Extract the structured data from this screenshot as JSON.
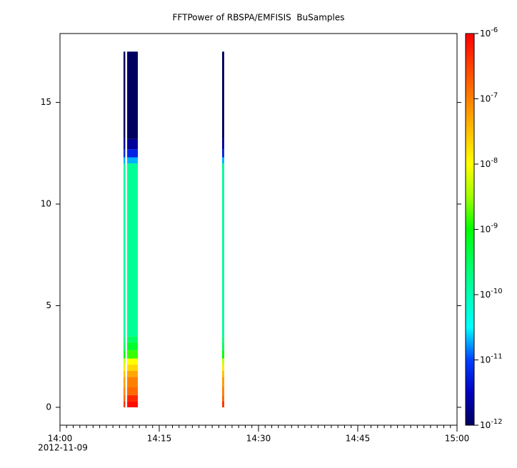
{
  "chart_data": {
    "type": "spectrogram",
    "title": "FFTPower of RBSPA/EMFISIS  BuSamples",
    "date_label": "2012-11-09",
    "xlim": [
      "14:00",
      "15:00"
    ],
    "xticks": [
      "14:00",
      "14:15",
      "14:30",
      "14:45",
      "15:00"
    ],
    "xminor_step_minutes": 1,
    "ylim": [
      -0.88,
      18.39
    ],
    "yticks": [
      0,
      5,
      10,
      15
    ],
    "y_bin_edges": [
      0,
      0.3,
      0.6,
      1,
      1.5,
      1.8,
      2.1,
      2.4,
      2.8,
      3.2,
      3.5,
      12,
      12.3,
      12.7,
      13.2,
      17.5
    ],
    "columns": [
      {
        "x0": "14:09:36",
        "x1": "14:09:52",
        "values": [
          4e-07,
          1.5e-07,
          1e-07,
          6e-08,
          3e-08,
          1.5e-08,
          5e-09,
          1e-09,
          3e-10,
          2e-10,
          1.5e-10,
          2e-11,
          6e-12,
          2e-12,
          5e-13
        ]
      },
      {
        "x0": "14:10:09",
        "x1": "14:11:46",
        "values": [
          8e-07,
          5e-07,
          1.5e-07,
          1e-07,
          5e-08,
          2e-08,
          1e-08,
          1.5e-09,
          6e-10,
          3e-10,
          1.5e-10,
          2e-11,
          6e-12,
          2e-12,
          5e-13
        ]
      },
      {
        "x0": "14:24:30",
        "x1": "14:24:49",
        "values": [
          4e-07,
          1.5e-07,
          1e-07,
          6e-08,
          3e-08,
          1.5e-08,
          5e-09,
          1e-09,
          3e-10,
          2e-10,
          1.5e-10,
          2e-11,
          6e-12,
          2e-12,
          5e-13
        ]
      }
    ],
    "zlim": [
      1e-12,
      1e-06
    ],
    "zlog": true,
    "zticks": [
      {
        "value": 1e-06,
        "label": "10",
        "exponent": "-6"
      },
      {
        "value": 1e-07,
        "label": "10",
        "exponent": "-7"
      },
      {
        "value": 1e-08,
        "label": "10",
        "exponent": "-8"
      },
      {
        "value": 1e-09,
        "label": "10",
        "exponent": "-9"
      },
      {
        "value": 1e-10,
        "label": "10",
        "exponent": "-10"
      },
      {
        "value": 1e-11,
        "label": "10",
        "exponent": "-11"
      },
      {
        "value": 1e-12,
        "label": "10",
        "exponent": "-12"
      }
    ],
    "colormap": [
      "#000060",
      "#0000c0",
      "#0040ff",
      "#00ffff",
      "#00ffb4",
      "#00ff60",
      "#00ff00",
      "#a0ff00",
      "#ffff00",
      "#ffc000",
      "#ff8000",
      "#ff4000",
      "#ff0000"
    ]
  }
}
